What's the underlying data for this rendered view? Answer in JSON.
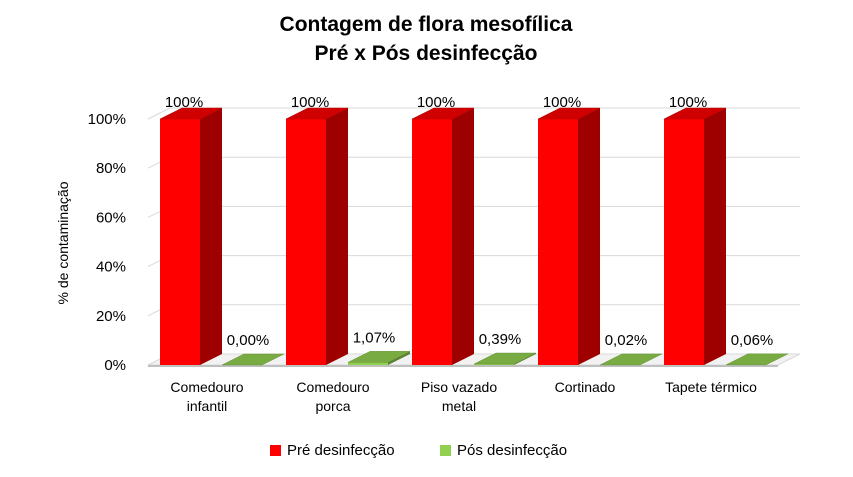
{
  "chart_data": {
    "type": "bar",
    "title": "Contagem de flora mesofílica",
    "subtitle": "Pré x Pós desinfecção",
    "xlabel": "",
    "ylabel": "% de contaminação",
    "categories": [
      [
        "Comedouro",
        "infantil"
      ],
      [
        "Comedouro",
        "porca"
      ],
      [
        "Piso vazado",
        "metal"
      ],
      [
        "Cortinado"
      ],
      [
        "Tapete térmico"
      ]
    ],
    "series": [
      {
        "name": "Pré desinfecção",
        "color": "#ff0000",
        "values": [
          100,
          100,
          100,
          100,
          100
        ],
        "labels": [
          "100%",
          "100%",
          "100%",
          "100%",
          "100%"
        ]
      },
      {
        "name": "Pós desinfecção",
        "color": "#92d050",
        "values": [
          0.0,
          1.07,
          0.39,
          0.02,
          0.06
        ],
        "labels": [
          "0,00%",
          "1,07%",
          "0,39%",
          "0,02%",
          "0,06%"
        ]
      }
    ],
    "ylim": [
      0,
      100
    ],
    "yticks": [
      0,
      20,
      40,
      60,
      80,
      100
    ],
    "ytick_labels": [
      "0%",
      "20%",
      "40%",
      "60%",
      "80%",
      "100%"
    ],
    "grid": true,
    "legend_position": "bottom",
    "style": "3d-clustered-column"
  }
}
